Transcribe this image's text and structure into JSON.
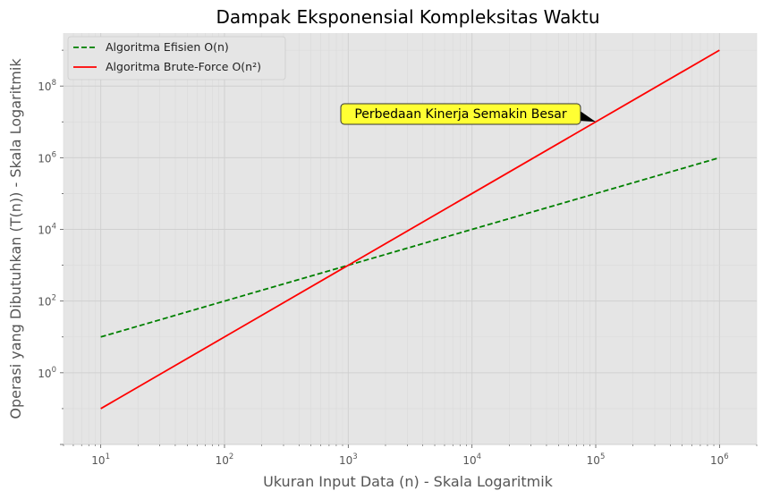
{
  "chart_data": {
    "type": "line",
    "title": "Dampak Eksponensial Kompleksitas Waktu",
    "xlabel": "Ukuran Input Data (n) - Skala Logaritmik",
    "ylabel": "Operasi yang Dibutuhkan (T(n)) - Skala Logaritmik",
    "xscale": "log",
    "yscale": "log",
    "xlim": [
      5,
      2000000
    ],
    "ylim": [
      0.01,
      3000000000
    ],
    "grid": true,
    "legend_position": "top-left",
    "x_tick_labels": [
      {
        "base": "10",
        "exp": "1"
      },
      {
        "base": "10",
        "exp": "2"
      },
      {
        "base": "10",
        "exp": "3"
      },
      {
        "base": "10",
        "exp": "4"
      },
      {
        "base": "10",
        "exp": "5"
      },
      {
        "base": "10",
        "exp": "6"
      }
    ],
    "y_tick_labels": [
      {
        "base": "10",
        "exp": "0"
      },
      {
        "base": "10",
        "exp": "2"
      },
      {
        "base": "10",
        "exp": "4"
      },
      {
        "base": "10",
        "exp": "6"
      },
      {
        "base": "10",
        "exp": "8"
      }
    ],
    "series": [
      {
        "name": "Algoritma Efisien O(n)",
        "color": "#008000",
        "style": "dashed",
        "x": [
          10,
          100,
          1000,
          10000,
          100000,
          1000000
        ],
        "y": [
          10,
          100,
          1000,
          10000,
          100000,
          1000000
        ]
      },
      {
        "name": "Algoritma Brute-Force O(n²)",
        "color": "#ff0000",
        "style": "solid",
        "x": [
          10,
          100,
          1000,
          10000,
          100000,
          1000000
        ],
        "y": [
          0.1,
          10,
          1000,
          100000,
          10000000,
          1000000000
        ]
      }
    ],
    "annotation": {
      "text": "Perbedaan Kinerja Semakin Besar",
      "point": [
        100000,
        10000000
      ],
      "box_color": "#ffff33"
    }
  }
}
